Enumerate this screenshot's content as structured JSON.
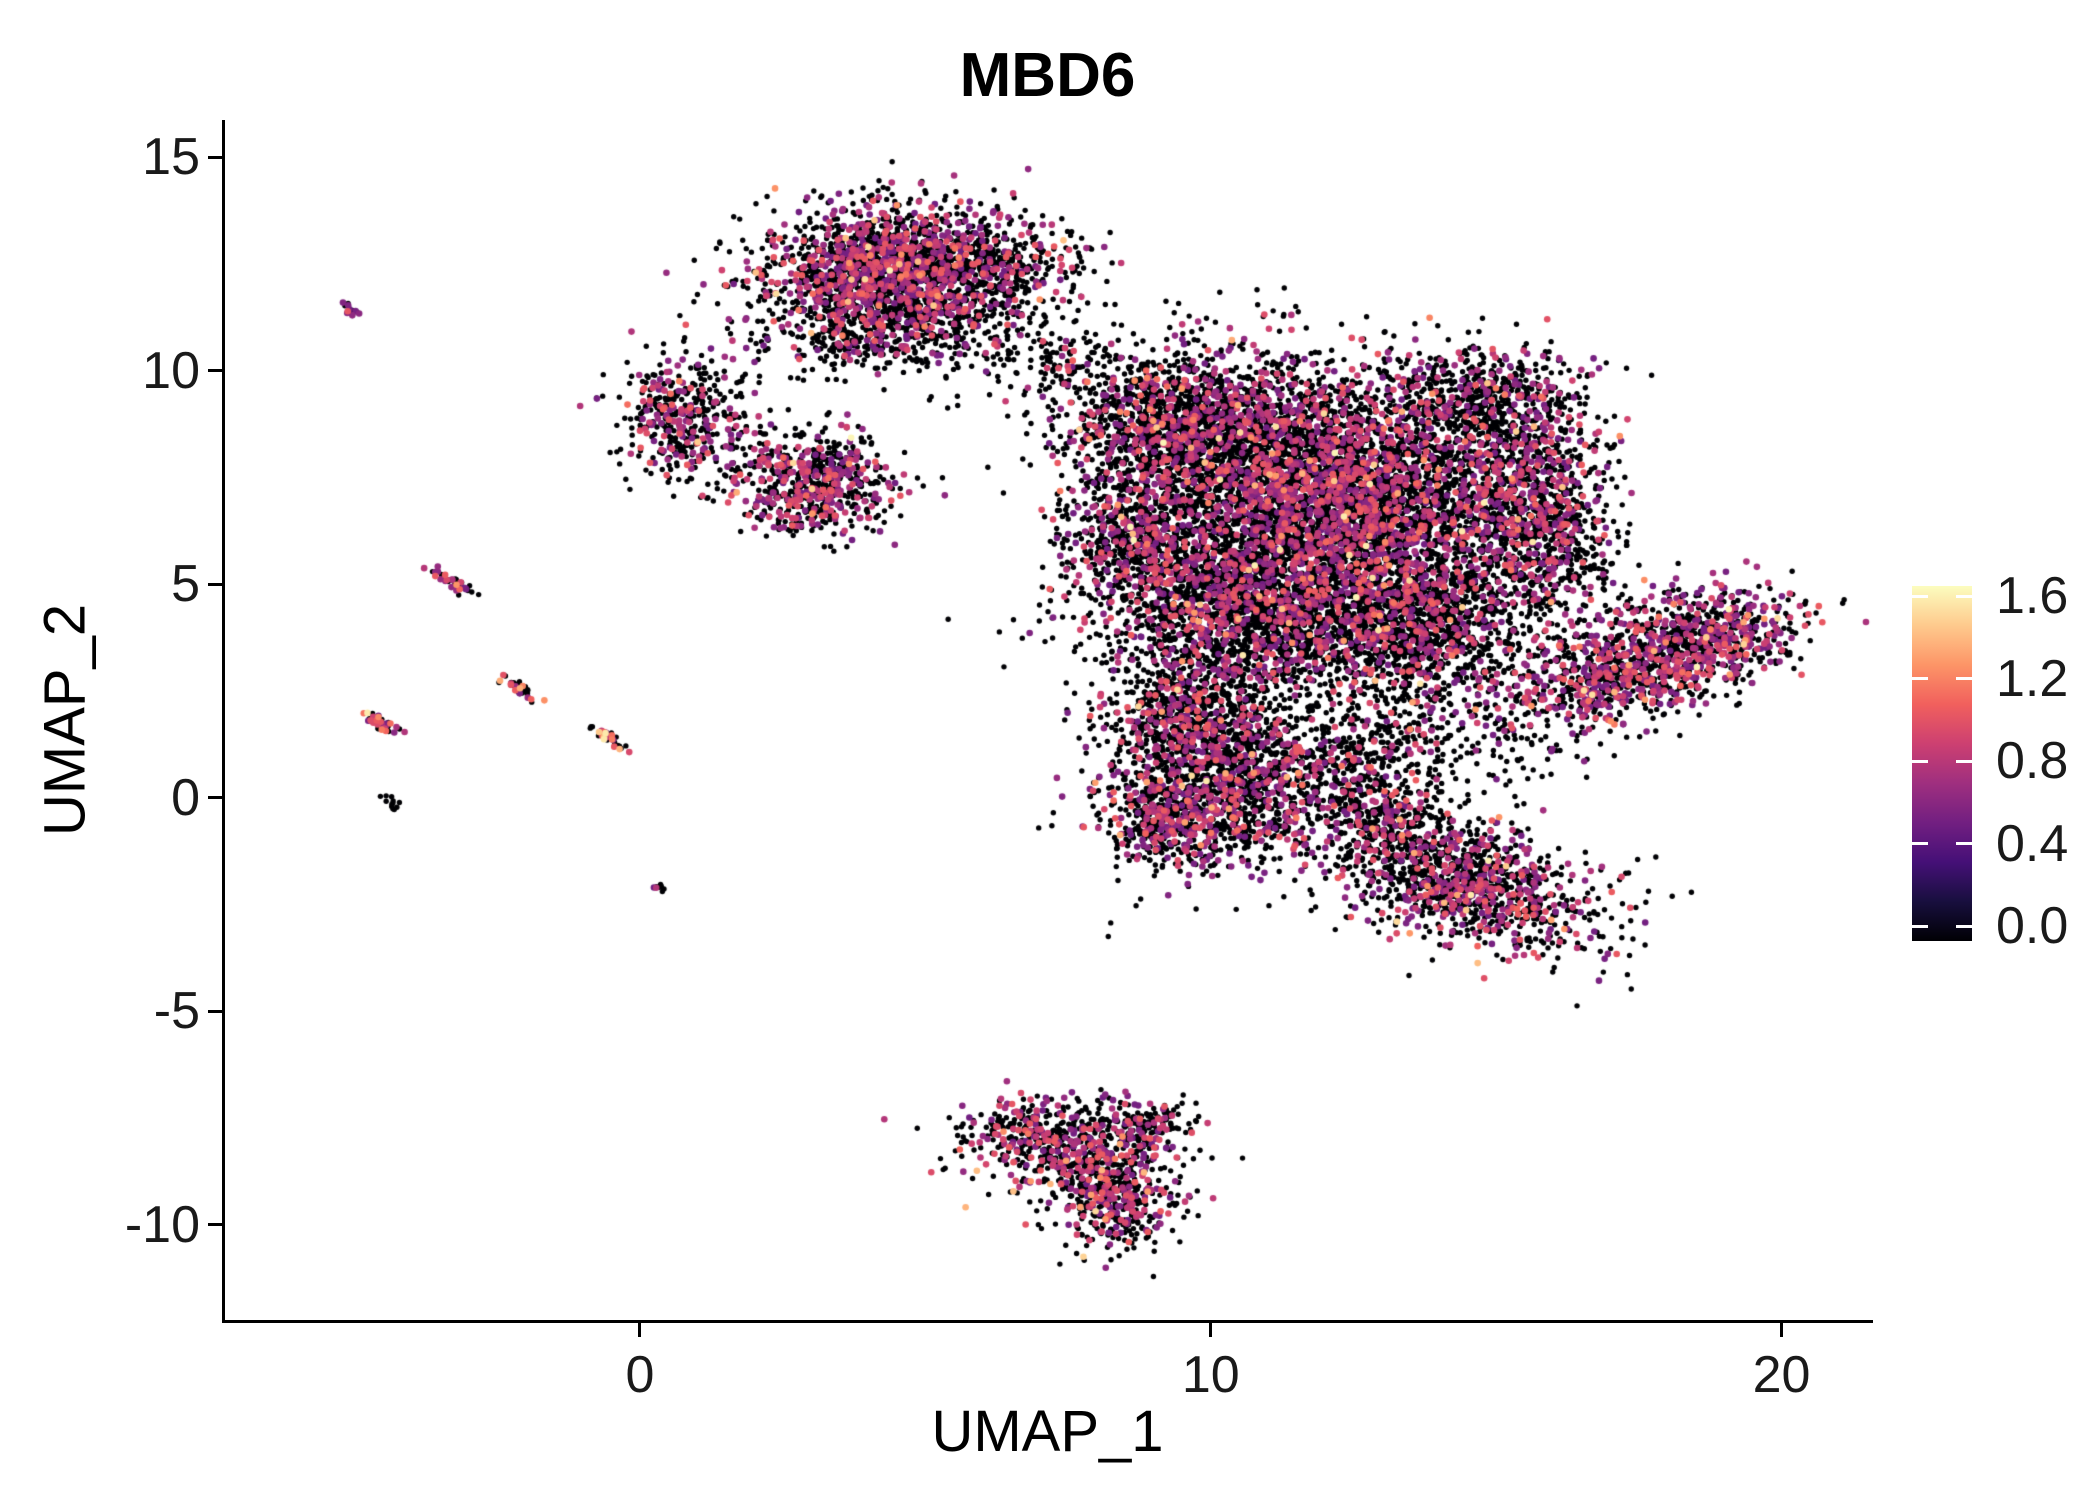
{
  "figure": {
    "background": "#ffffff",
    "kind": "single-cell feature plot (UMAP embedding colored by gene expression)"
  },
  "chart_data": {
    "type": "scatter",
    "title": "MBD6",
    "xlabel": "UMAP_1",
    "ylabel": "UMAP_2",
    "xlim": [
      -7.27,
      21.55
    ],
    "ylim": [
      -12.23,
      15.87
    ],
    "x_ticks": [
      0,
      10,
      20
    ],
    "y_ticks": [
      15,
      10,
      5,
      0,
      -5,
      -10
    ],
    "grid": false,
    "legend": {
      "position": "right",
      "tick_values": [
        1.6,
        1.2,
        0.8,
        0.4,
        0.0
      ],
      "value_max": 1.66
    },
    "colormap": {
      "name": "magma",
      "stops": [
        "#000004",
        "#180f3e",
        "#451077",
        "#721f81",
        "#9f2f7f",
        "#cd4071",
        "#f1605d",
        "#fd9567",
        "#feca8d",
        "#fcfdbf"
      ]
    },
    "zero_expression_color": "#000004",
    "point_radius_zero": 2.7,
    "point_radius_expressing": 3.3,
    "clusters": [
      {
        "cx": 4.5,
        "cy": 12.3,
        "sx": 1.15,
        "sy": 0.75,
        "n": 2200,
        "fc": 0.32
      },
      {
        "cx": 6.6,
        "cy": 12.4,
        "sx": 0.8,
        "sy": 0.6,
        "n": 180,
        "fc": 0.15
      },
      {
        "cx": 4.0,
        "cy": 10.9,
        "sx": 0.9,
        "sy": 0.5,
        "n": 300,
        "fc": 0.25
      },
      {
        "cx": 0.75,
        "cy": 8.9,
        "sx": 0.55,
        "sy": 0.75,
        "n": 450,
        "fc": 0.3
      },
      {
        "cx": 3.1,
        "cy": 7.4,
        "sx": 0.65,
        "sy": 0.6,
        "n": 650,
        "fc": 0.35
      },
      {
        "cx": 5.9,
        "cy": 10.6,
        "sx": 0.8,
        "sy": 0.5,
        "n": 100,
        "fc": 0.1
      },
      {
        "cx": 7.3,
        "cy": 10.4,
        "sx": 0.5,
        "sy": 0.4,
        "n": 80,
        "fc": 0.1
      },
      {
        "cx": 9.6,
        "cy": 8.7,
        "sx": 1.1,
        "sy": 0.9,
        "n": 1700,
        "fc": 0.22
      },
      {
        "cx": 12.3,
        "cy": 7.1,
        "sx": 1.6,
        "sy": 1.4,
        "n": 4200,
        "fc": 0.3
      },
      {
        "cx": 8.6,
        "cy": 6.2,
        "sx": 0.6,
        "sy": 0.7,
        "n": 500,
        "fc": 0.25
      },
      {
        "cx": 10.6,
        "cy": 4.6,
        "sx": 1.3,
        "sy": 1.1,
        "n": 2200,
        "fc": 0.25
      },
      {
        "cx": 13.6,
        "cy": 4.2,
        "sx": 1.1,
        "sy": 1.0,
        "n": 1400,
        "fc": 0.25
      },
      {
        "cx": 15.6,
        "cy": 6.9,
        "sx": 0.7,
        "sy": 1.3,
        "n": 900,
        "fc": 0.3
      },
      {
        "cx": 14.7,
        "cy": 9.3,
        "sx": 0.8,
        "sy": 0.6,
        "n": 500,
        "fc": 0.2
      },
      {
        "cx": 9.6,
        "cy": 1.9,
        "sx": 0.7,
        "sy": 0.7,
        "n": 600,
        "fc": 0.25
      },
      {
        "cx": 11.5,
        "cy": 3.2,
        "sx": 2.2,
        "sy": 1.1,
        "n": 350,
        "fc": 0.15
      },
      {
        "cx": 13.8,
        "cy": 1.2,
        "sx": 1.2,
        "sy": 0.8,
        "n": 250,
        "fc": 0.15
      },
      {
        "cx": 17.6,
        "cy": 3.1,
        "sx": 1.25,
        "sy": 0.6,
        "angle": 25,
        "n": 1100,
        "fc": 0.38
      },
      {
        "cx": 18.9,
        "cy": 3.9,
        "sx": 0.6,
        "sy": 0.5,
        "n": 300,
        "fc": 0.38
      },
      {
        "cx": 16.2,
        "cy": 5.6,
        "sx": 0.5,
        "sy": 0.8,
        "n": 150,
        "fc": 0.2
      },
      {
        "cx": 10.3,
        "cy": 0.2,
        "sx": 1.0,
        "sy": 0.9,
        "n": 1300,
        "fc": 0.28
      },
      {
        "cx": 9.2,
        "cy": -0.6,
        "sx": 0.45,
        "sy": 0.5,
        "n": 300,
        "fc": 0.3
      },
      {
        "cx": 12.4,
        "cy": 0.8,
        "sx": 0.8,
        "sy": 0.6,
        "n": 250,
        "fc": 0.2
      },
      {
        "cx": 13.1,
        "cy": -0.4,
        "sx": 0.5,
        "sy": 0.4,
        "n": 150,
        "fc": 0.2
      },
      {
        "cx": 14.3,
        "cy": -1.9,
        "sx": 1.3,
        "sy": 0.65,
        "angle": -25,
        "n": 1300,
        "fc": 0.28
      },
      {
        "cx": 7.3,
        "cy": -8.1,
        "sx": 0.85,
        "sy": 0.55,
        "angle": -15,
        "n": 550,
        "fc": 0.35
      },
      {
        "cx": 8.3,
        "cy": -9.4,
        "sx": 0.5,
        "sy": 0.6,
        "n": 450,
        "fc": 0.35
      },
      {
        "cx": 8.8,
        "cy": -7.7,
        "sx": 0.45,
        "sy": 0.35,
        "n": 180,
        "fc": 0.3
      },
      {
        "cx": -5.05,
        "cy": 11.4,
        "sx": 0.12,
        "sy": 0.05,
        "angle": -40,
        "n": 12,
        "fc": 0.7,
        "hot": 0.2
      },
      {
        "cx": -3.3,
        "cy": 5.05,
        "sx": 0.22,
        "sy": 0.06,
        "angle": -40,
        "n": 40,
        "fc": 0.55,
        "hot": 0.3
      },
      {
        "cx": -4.55,
        "cy": 1.75,
        "sx": 0.22,
        "sy": 0.06,
        "angle": -40,
        "n": 40,
        "fc": 0.6,
        "hot": 0.4
      },
      {
        "cx": -2.1,
        "cy": 2.55,
        "sx": 0.2,
        "sy": 0.06,
        "angle": -40,
        "n": 35,
        "fc": 0.45,
        "hot": 0.2
      },
      {
        "cx": -0.6,
        "cy": 1.45,
        "sx": 0.22,
        "sy": 0.06,
        "angle": -40,
        "n": 35,
        "fc": 0.5,
        "hot": 0.5
      },
      {
        "cx": -4.35,
        "cy": -0.1,
        "sx": 0.12,
        "sy": 0.05,
        "angle": -40,
        "n": 12,
        "fc": 0.15
      },
      {
        "cx": 0.3,
        "cy": -2.1,
        "sx": 0.08,
        "sy": 0.05,
        "angle": -40,
        "n": 8,
        "fc": 0.1
      }
    ]
  }
}
